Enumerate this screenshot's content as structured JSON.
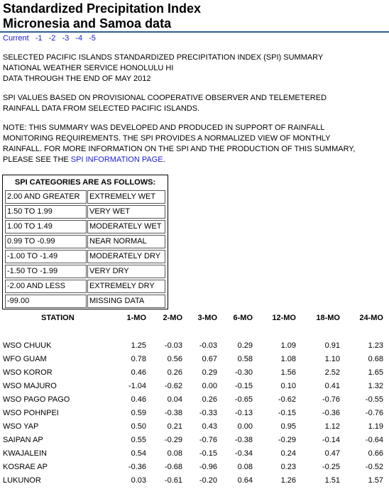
{
  "header": {
    "title_line1": "Standardized Precipitation Index",
    "title_line2": "Micronesia and Samoa data"
  },
  "nav": {
    "links": [
      "Current",
      "-1",
      "-2",
      "-3",
      "-4",
      "-5"
    ]
  },
  "intro": {
    "line1": "SELECTED PACIFIC ISLANDS STANDARDIZED PRECIPITATION INDEX (SPI) SUMMARY",
    "line2": "NATIONAL WEATHER SERVICE HONOLULU HI",
    "line3": "DATA THROUGH THE END OF MAY 2012",
    "basis1": "SPI VALUES BASED ON PROVISIONAL COOPERATIVE OBSERVER AND TELEMETERED",
    "basis2": "RAINFALL DATA FROM SELECTED PACIFIC ISLANDS.",
    "note1": "NOTE: THIS SUMMARY WAS DEVELOPED AND PRODUCED IN SUPPORT OF RAINFALL",
    "note2": "MONITORING REQUIREMENTS. THE SPI PROVIDES A NORMALIZED VIEW OF MONTHLY",
    "note3": "RAINFALL. FOR MORE INFORMATION ON THE SPI AND THE PRODUCTION OF THIS SUMMARY,",
    "note4_prefix": "PLEASE SEE THE ",
    "note4_link": "SPI INFORMATION PAGE",
    "note4_suffix": "."
  },
  "categories": {
    "heading": "SPI CATEGORIES ARE AS FOLLOWS:",
    "rows": [
      {
        "range": "2.00 AND GREATER",
        "label": "EXTREMELY WET"
      },
      {
        "range": "1.50 TO 1.99",
        "label": "VERY WET"
      },
      {
        "range": "1.00 TO 1.49",
        "label": "MODERATELY WET"
      },
      {
        "range": "0.99 TO -0.99",
        "label": "NEAR NORMAL"
      },
      {
        "range": "-1.00 TO -1.49",
        "label": "MODERATELY DRY"
      },
      {
        "range": "-1.50 TO -1.99",
        "label": "VERY DRY"
      },
      {
        "range": "-2.00 AND LESS",
        "label": "EXTREMELY DRY"
      },
      {
        "range": "-99.00",
        "label": "MISSING DATA"
      }
    ]
  },
  "table": {
    "columns": [
      "STATION",
      "1-MO",
      "2-MO",
      "3-MO",
      "6-MO",
      "12-MO",
      "18-MO",
      "24-MO"
    ],
    "rows": [
      [
        "WSO CHUUK",
        "1.25",
        "-0.03",
        "-0.03",
        "0.29",
        "1.09",
        "0.91",
        "1.23"
      ],
      [
        "WFO GUAM",
        "0.78",
        "0.56",
        "0.67",
        "0.58",
        "1.08",
        "1.10",
        "0.68"
      ],
      [
        "WSO KOROR",
        "0.46",
        "0.26",
        "0.29",
        "-0.30",
        "1.56",
        "2.52",
        "1.65"
      ],
      [
        "WSO MAJURO",
        "-1.04",
        "-0.62",
        "0.00",
        "-0.15",
        "0.10",
        "0.41",
        "1.32"
      ],
      [
        "WSO PAGO PAGO",
        "0.46",
        "0.04",
        "0.26",
        "-0.65",
        "-0.62",
        "-0.76",
        "-0.55"
      ],
      [
        "WSO POHNPEI",
        "0.59",
        "-0.38",
        "-0.33",
        "-0.13",
        "-0.15",
        "-0.36",
        "-0.76"
      ],
      [
        "WSO YAP",
        "0.50",
        "0.21",
        "0.43",
        "0.00",
        "0.95",
        "1.12",
        "1.19"
      ],
      [
        "SAIPAN AP",
        "0.55",
        "-0.29",
        "-0.76",
        "-0.38",
        "-0.29",
        "-0.14",
        "-0.64"
      ],
      [
        "KWAJALEIN",
        "0.54",
        "0.08",
        "-0.15",
        "-0.34",
        "0.24",
        "0.47",
        "0.66"
      ],
      [
        "KOSRAE AP",
        "-0.36",
        "-0.68",
        "-0.96",
        "0.08",
        "0.23",
        "-0.25",
        "-0.52"
      ],
      [
        "LUKUNOR",
        "0.03",
        "-0.61",
        "-0.20",
        "0.64",
        "1.26",
        "1.51",
        "1.57"
      ]
    ]
  },
  "colors": {
    "link": "#1a1ad6",
    "rule": "#2e5f8e"
  }
}
